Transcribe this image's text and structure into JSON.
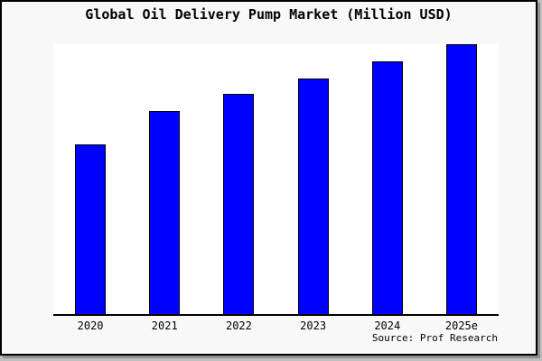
{
  "title": "Global Oil Delivery Pump Market (Million USD)",
  "source_caption": "Source: Prof Research",
  "colors": {
    "bar_fill": "#0000ff",
    "bar_border": "#000000",
    "axis": "#000000",
    "background": "#f8f8f8",
    "plot_background": "#ffffff"
  },
  "chart_data": {
    "type": "bar",
    "title": "Global Oil Delivery Pump Market (Million USD)",
    "categories": [
      "2020",
      "2021",
      "2022",
      "2023",
      "2024",
      "2025e"
    ],
    "values": [
      62.6,
      75.1,
      81.4,
      87.4,
      93.6,
      100
    ],
    "values_unit": "relative index (2025e = 100); y-axis has no tick labels in source image",
    "xlabel": "",
    "ylabel": "",
    "ylim": [
      0,
      100
    ],
    "grid": false,
    "legend": false,
    "bar_color": "#0000ff",
    "source": "Source: Prof Research"
  }
}
